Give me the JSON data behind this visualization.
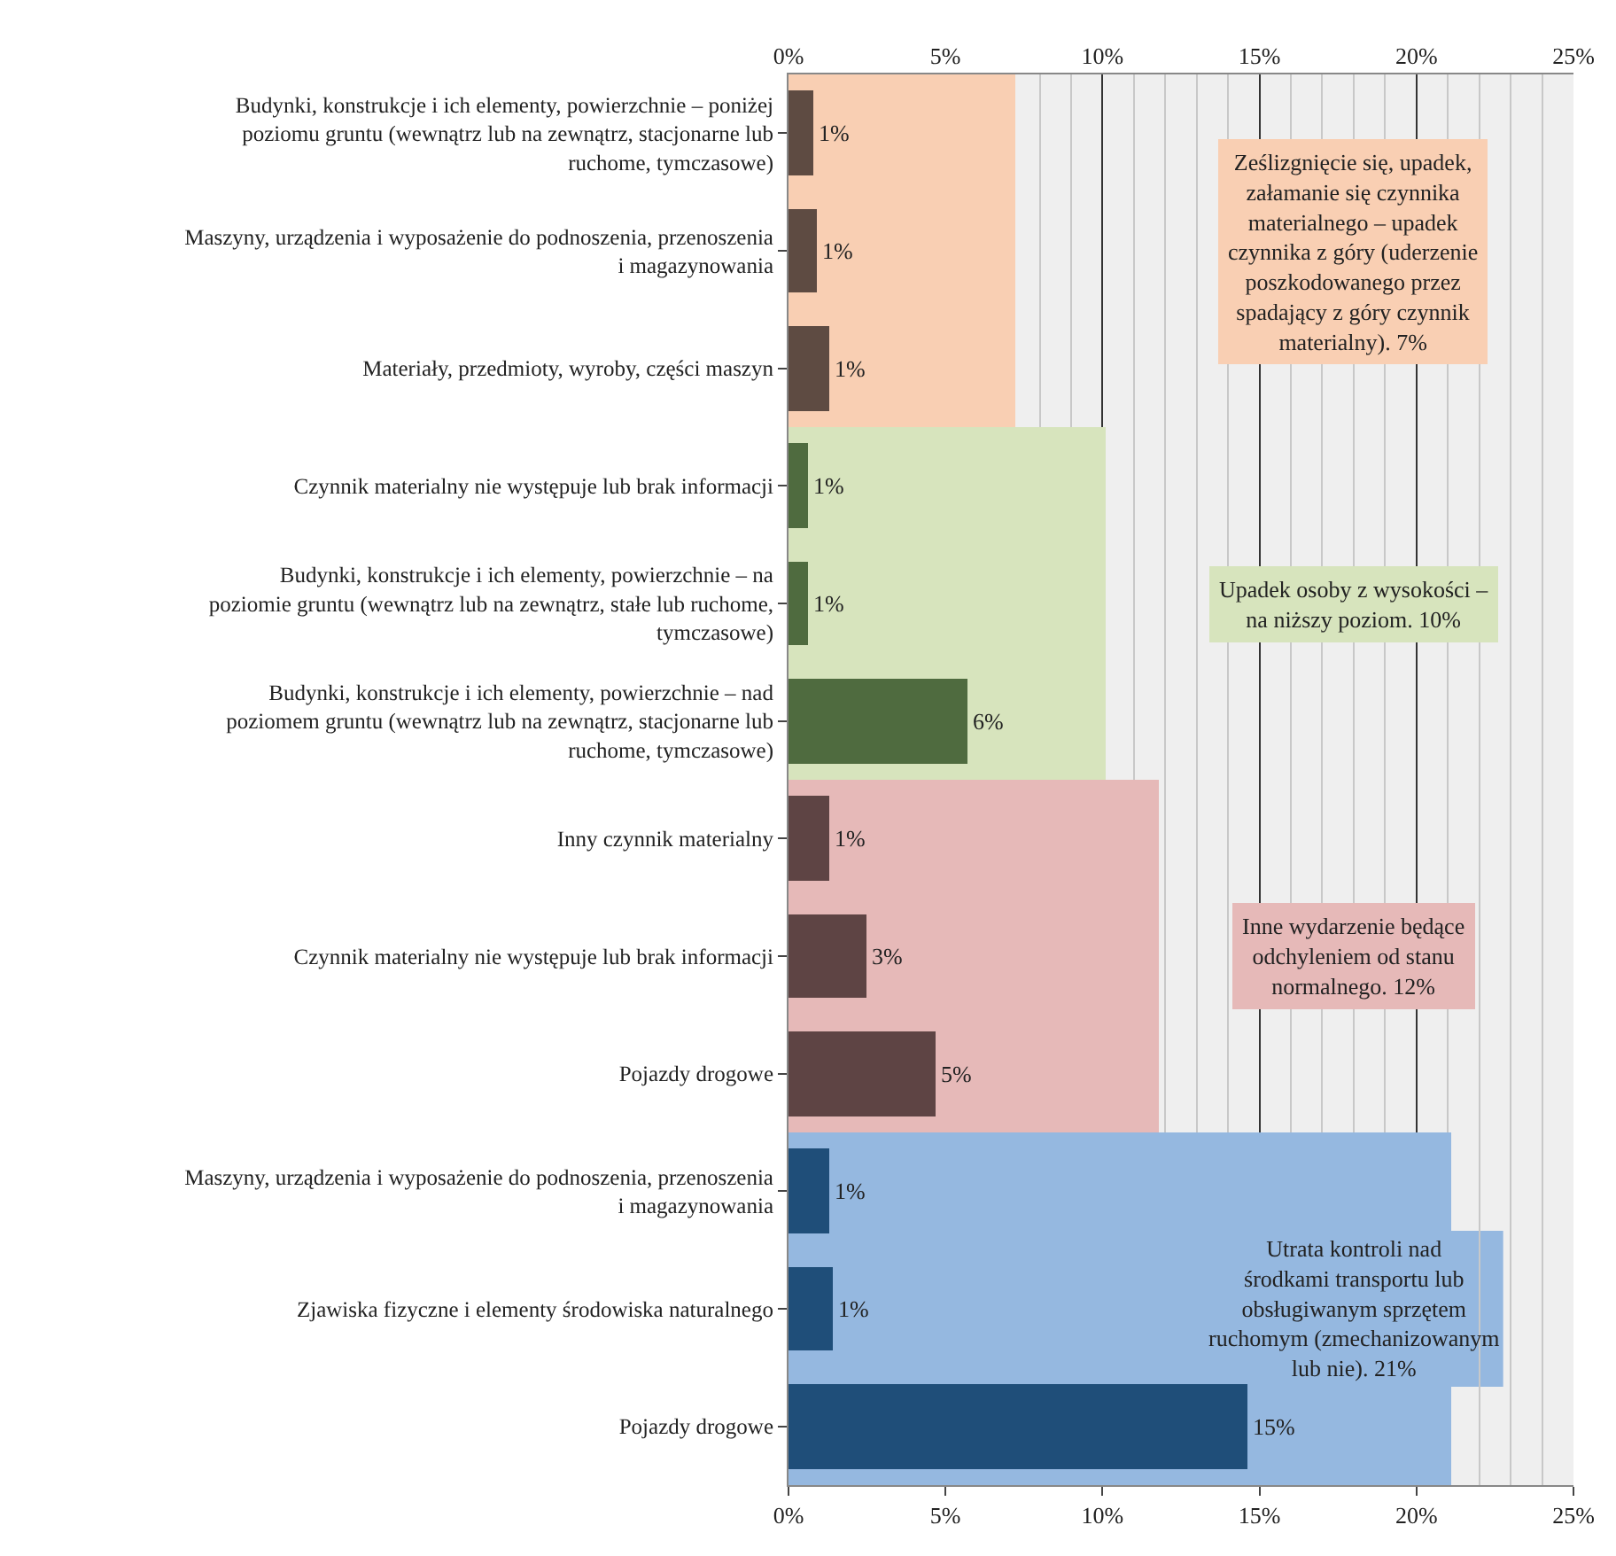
{
  "chart_data": {
    "type": "bar",
    "orientation": "horizontal",
    "categories": [
      "Budynki, konstrukcje i ich elementy, powierzchnie – poniżej poziomu gruntu (wewnątrz lub na zewnątrz, stacjonarne lub ruchome, tymczasowe)",
      "Maszyny, urządzenia i wyposażenie do podnoszenia, przenoszenia i magazynowania",
      "Materiały, przedmioty, wyroby, części maszyn",
      "Czynnik materialny nie występuje lub brak informacji",
      "Budynki, konstrukcje i ich elementy, powierzchnie – na poziomie gruntu (wewnątrz lub na zewnątrz, stałe lub ruchome, tymczasowe)",
      "Budynki, konstrukcje i ich elementy, powierzchnie – nad poziomem gruntu (wewnątrz lub na zewnątrz, stacjonarne lub ruchome, tymczasowe)",
      "Inny czynnik materialny",
      "Czynnik materialny nie występuje lub brak informacji",
      "Pojazdy drogowe",
      "Maszyny, urządzenia i wyposażenie do podnoszenia, przenoszenia i magazynowania",
      "Zjawiska fizyczne i elementy środowiska naturalnego",
      "Pojazdy drogowe"
    ],
    "series": [
      {
        "values": [
          7.2,
          7.2,
          7.2,
          10.1,
          10.1,
          10.1,
          11.8,
          11.8,
          11.8,
          21.1,
          21.1,
          21.1
        ],
        "colors": [
          "#f9cfb3",
          "#f9cfb3",
          "#f9cfb3",
          "#d7e4bd",
          "#d7e4bd",
          "#d7e4bd",
          "#e6b9b8",
          "#e6b9b8",
          "#e6b9b8",
          "#95b8e0",
          "#95b8e0",
          "#95b8e0"
        ]
      },
      {
        "values": [
          0.8,
          0.9,
          1.3,
          0.6,
          0.6,
          5.7,
          1.3,
          2.5,
          4.7,
          1.3,
          1.4,
          14.6
        ],
        "colors": [
          "#5e4b42",
          "#5e4b42",
          "#5e4b42",
          "#4f6b3f",
          "#4f6b3f",
          "#4f6b3f",
          "#5e4444",
          "#5e4444",
          "#5e4444",
          "#1f4e79",
          "#1f4e79",
          "#1f4e79"
        ],
        "value_labels": [
          "1%",
          "1%",
          "1%",
          "1%",
          "1%",
          "6%",
          "1%",
          "3%",
          "5%",
          "1%",
          "1%",
          "15%"
        ]
      }
    ],
    "annotations": [
      "Ześlizgnięcie się, upadek, załamanie się czynnika materialnego – upadek czynnika z góry (uderzenie poszkodowanego przez spadający z góry czynnik materialny). 7%",
      "Upadek osoby z wysokości – na niższy poziom. 10%",
      "Inne wydarzenie będące odchyleniem od stanu normalnego. 12%",
      "Utrata kontroli nad środkami transportu lub obsługiwanym sprzętem ruchomym (zmechanizowanym lub nie). 21%"
    ],
    "xlim": [
      0,
      25
    ],
    "xticks": [
      {
        "value": 0,
        "label": "0%"
      },
      {
        "value": 5,
        "label": "5%"
      },
      {
        "value": 10,
        "label": "10%"
      },
      {
        "value": 15,
        "label": "15%"
      },
      {
        "value": 20,
        "label": "20%"
      },
      {
        "value": 25,
        "label": "25%"
      }
    ],
    "x2lim": [
      0,
      25
    ],
    "x2ticks": [
      {
        "value": 0,
        "label": "0%"
      },
      {
        "value": 5,
        "label": "5%"
      },
      {
        "value": 10,
        "label": "10%"
      },
      {
        "value": 15,
        "label": "15%"
      },
      {
        "value": 20,
        "label": "20%"
      },
      {
        "value": 25,
        "label": "25%"
      }
    ],
    "grid": "x"
  }
}
